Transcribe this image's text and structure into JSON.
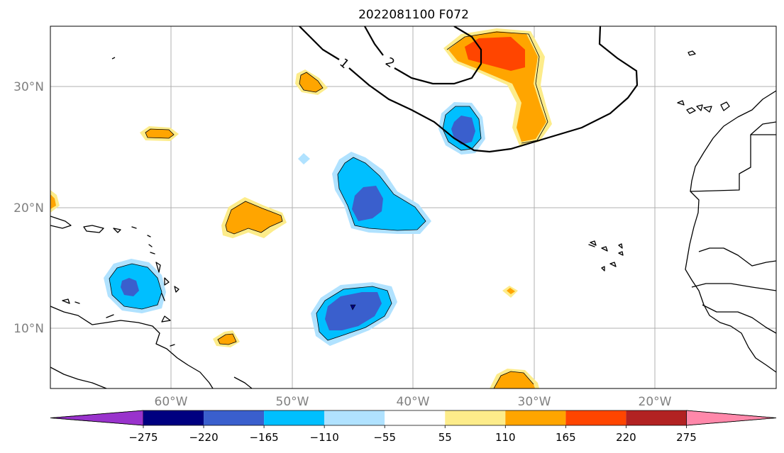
{
  "title": "2022081100 F072",
  "latitude_labels": [
    "30°N",
    "20°N",
    "10°N"
  ],
  "longitude_labels": [
    "60°W",
    "50°W",
    "40°W",
    "30°W",
    "20°W"
  ],
  "contour_labels": [
    "1",
    "2"
  ],
  "colorbar": {
    "ticks": [
      "−275",
      "−220",
      "−165",
      "−110",
      "−55",
      "55",
      "110",
      "165",
      "220",
      "275"
    ],
    "colors": [
      "#9933cc",
      "#000080",
      "#3a5fcd",
      "#00bfff",
      "#b0e2ff",
      "#ffffff",
      "#fdec8a",
      "#ffa500",
      "#ff4500",
      "#b22222",
      "#ff88aa"
    ]
  },
  "colors": {
    "grid": "#b0b0b0",
    "axis_label": "#808080"
  }
}
